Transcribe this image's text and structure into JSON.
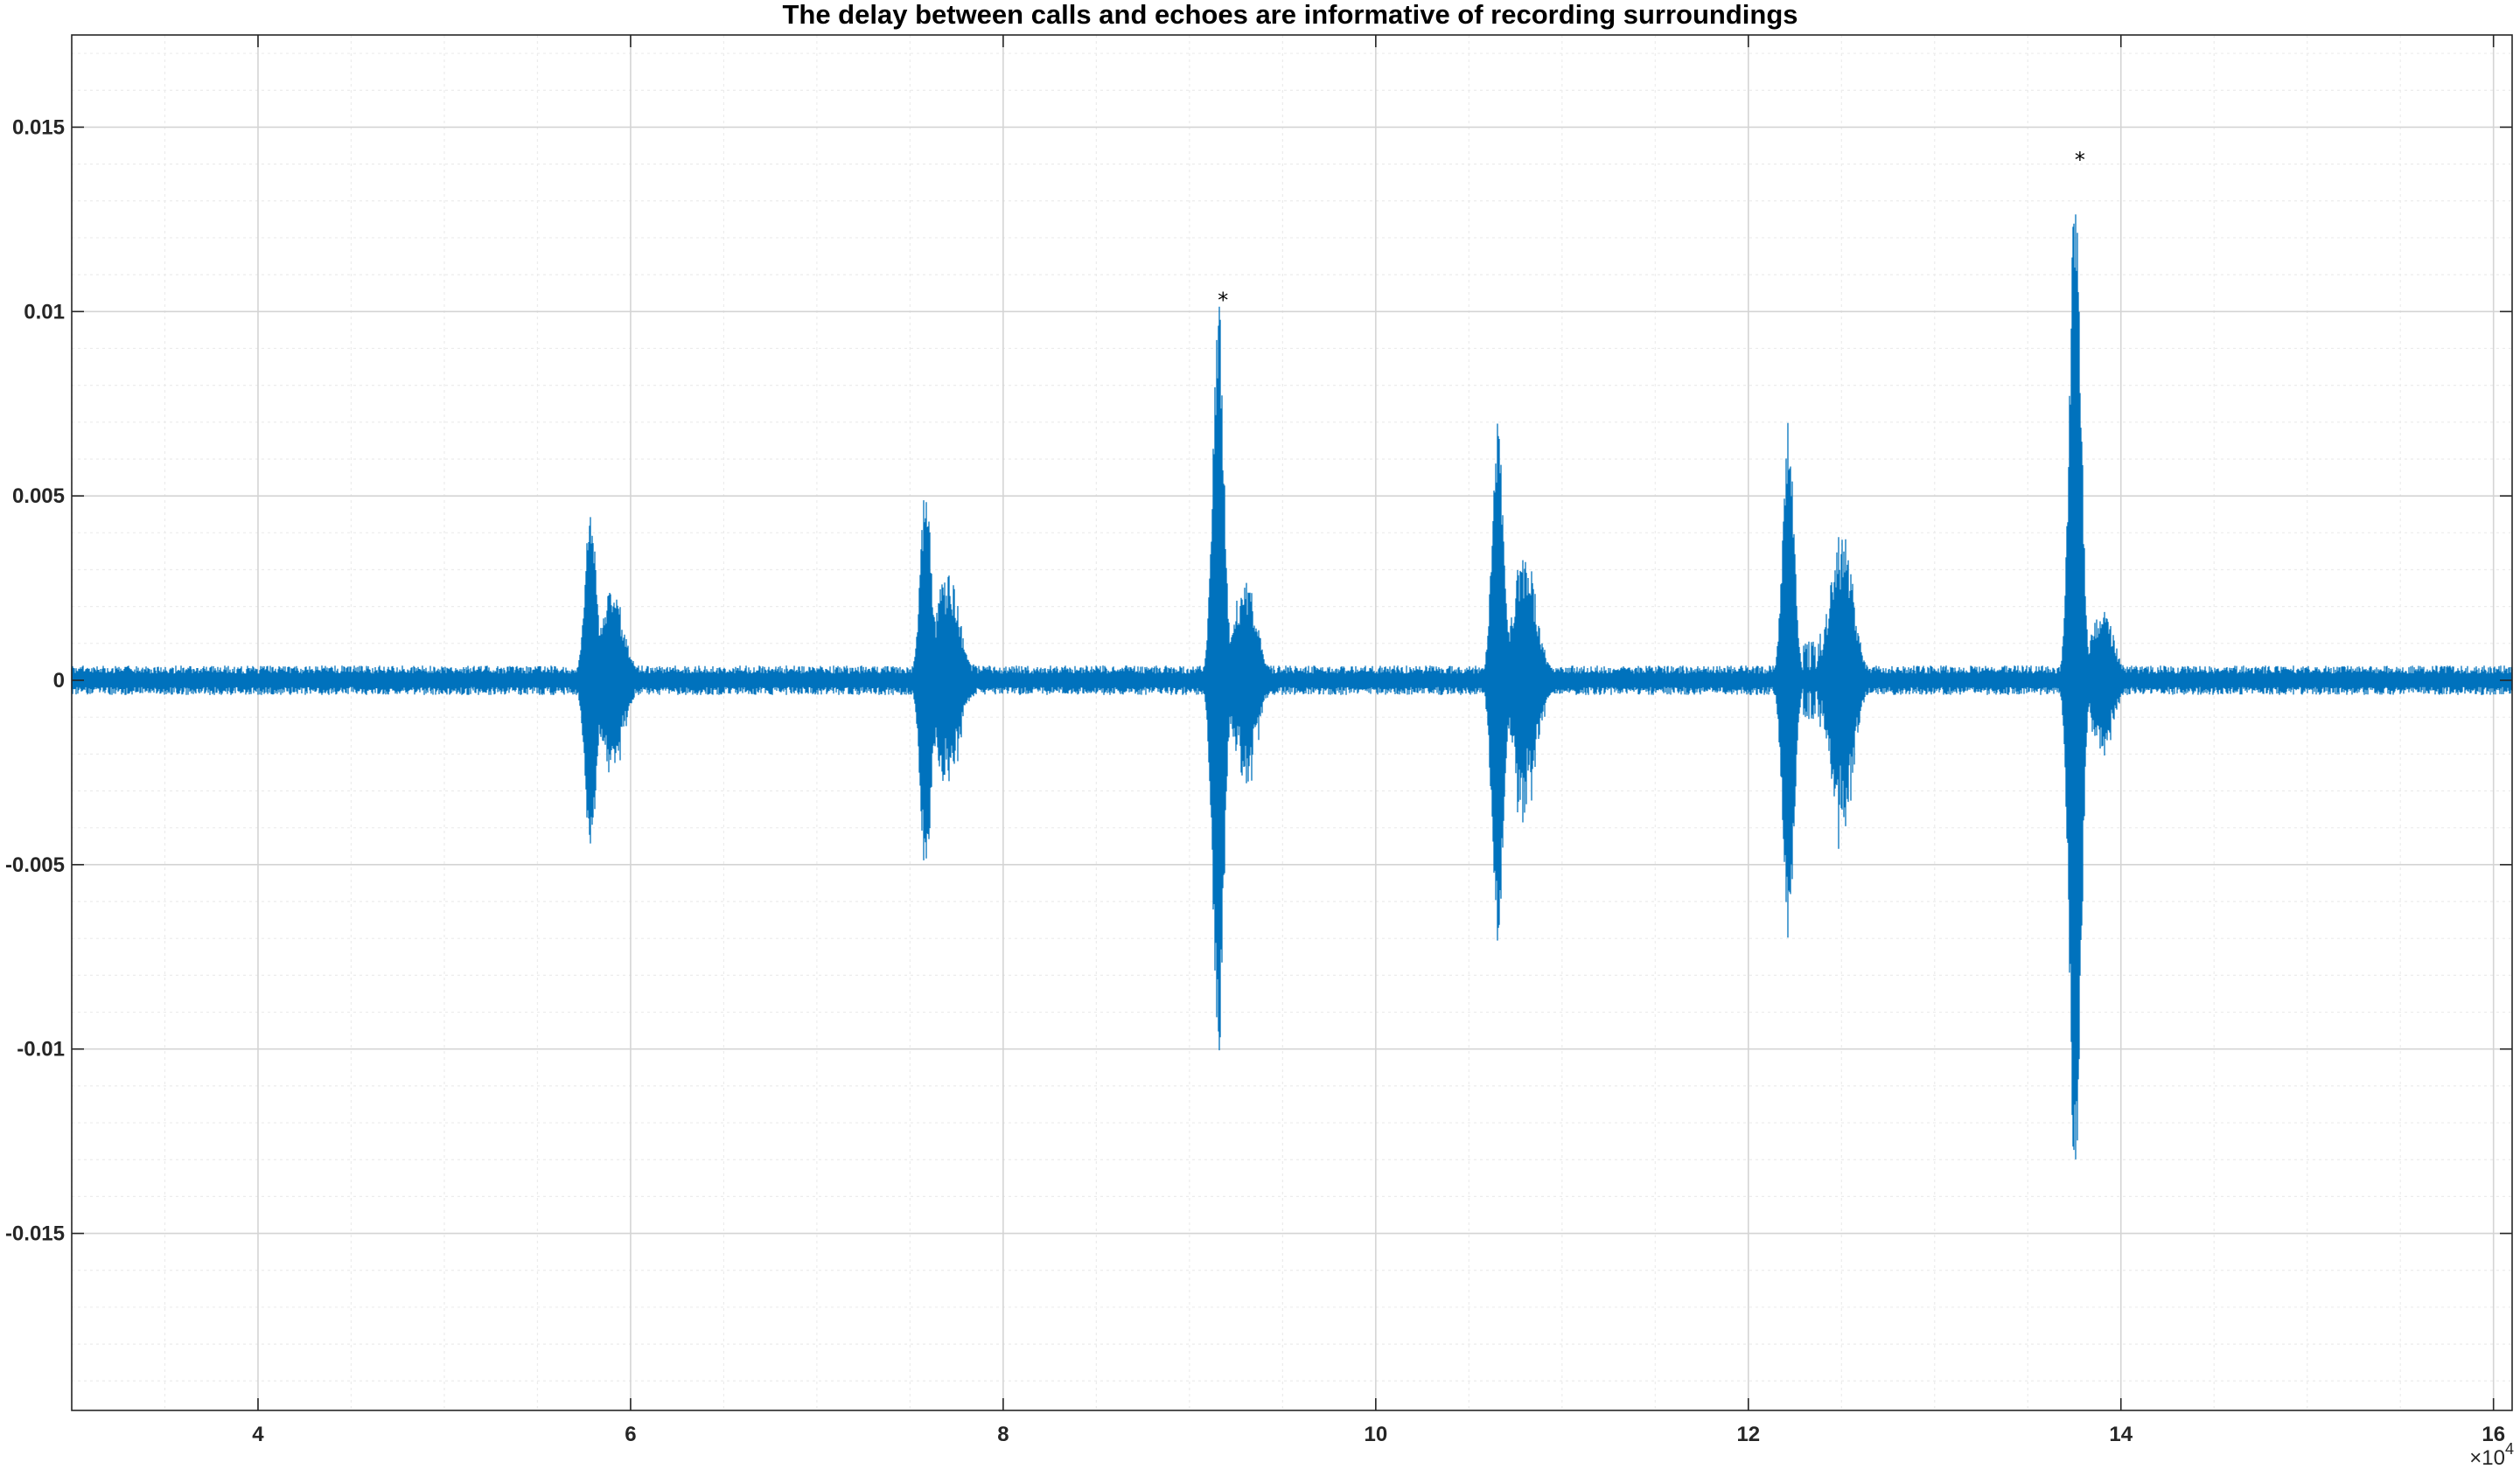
{
  "chart_data": {
    "type": "line",
    "title": "The delay between calls and echoes are informative of recording surroundings",
    "xlabel": "",
    "ylabel": "",
    "xlim": [
      30000,
      161000
    ],
    "ylim": [
      -0.0198,
      0.0175
    ],
    "x_ticks": [
      40000,
      60000,
      80000,
      100000,
      120000,
      140000,
      160000
    ],
    "x_tick_labels": [
      "4",
      "6",
      "8",
      "10",
      "12",
      "14",
      "16"
    ],
    "x_exponent_label": {
      "base": "×10",
      "power": "4"
    },
    "y_ticks": [
      0.015,
      0.01,
      0.005,
      0,
      -0.005,
      -0.01,
      -0.015
    ],
    "y_tick_labels": [
      "0.015",
      "0.01",
      "0.005",
      "0",
      "-0.005",
      "-0.01",
      "-0.015"
    ],
    "grid": true,
    "minor_grid": true,
    "series": [
      {
        "color": "#0072BD",
        "baseline_noise_amplitude": 0.0004,
        "bursts": [
          {
            "start": 57500,
            "peak": 0.0049,
            "trough": -0.0049,
            "echo_peak": 0.0026,
            "echo_x": 59000
          },
          {
            "start": 75500,
            "peak": 0.0053,
            "trough": -0.0053,
            "echo_peak": 0.003,
            "echo_x": 77000
          },
          {
            "start": 91200,
            "peak": 0.0104,
            "trough": -0.0103,
            "echo_peak": 0.0028,
            "echo_x": 93000
          },
          {
            "start": 106200,
            "peak": 0.0072,
            "trough": -0.0073,
            "echo_peak": 0.0036,
            "echo_x": 108000
          },
          {
            "start": 121800,
            "peak": 0.0071,
            "trough": -0.0071,
            "echo_peak": 0.0041,
            "echo_x": 125000
          },
          {
            "start": 137200,
            "peak": 0.0142,
            "trough": -0.0146,
            "echo_peak": 0.0019,
            "echo_x": 139000
          }
        ]
      }
    ],
    "markers": [
      {
        "x": 91800,
        "y": 0.0104,
        "symbol": "*",
        "color": "#000000"
      },
      {
        "x": 137800,
        "y": 0.0142,
        "symbol": "*",
        "color": "#000000"
      }
    ]
  }
}
